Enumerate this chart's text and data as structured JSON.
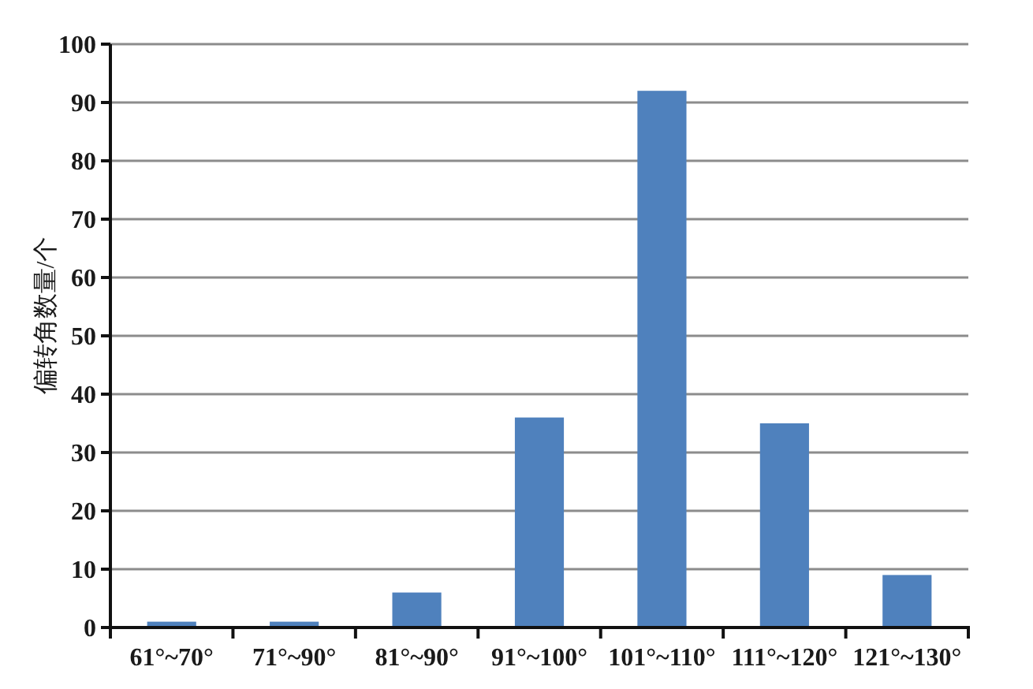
{
  "chart_data": {
    "type": "bar",
    "ylabel": "偏转角数量/个",
    "categories": [
      "61°~70°",
      "71°~90°",
      "81°~90°",
      "91°~100°",
      "101°~110°",
      "111°~120°",
      "121°~130°"
    ],
    "values": [
      1,
      1,
      6,
      36,
      92,
      35,
      9
    ],
    "color": "#4f81bd",
    "ylim": [
      0,
      100
    ],
    "yticks": [
      0,
      10,
      20,
      30,
      40,
      50,
      60,
      70,
      80,
      90,
      100
    ],
    "grid": "y"
  }
}
